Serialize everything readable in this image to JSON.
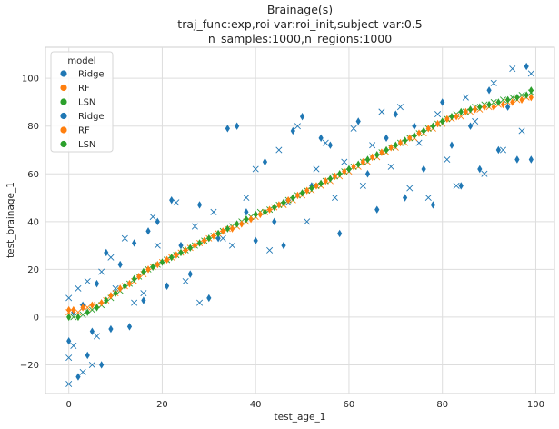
{
  "chart_data": {
    "type": "scatter",
    "title_lines": [
      "Brainage(s)",
      "traj_func:exp,roi-var:roi_init,subject-var:0.5",
      "n_samples:1000,n_regions:1000"
    ],
    "xlabel": "test_age_1",
    "ylabel": "test_brainage_1",
    "xlim": [
      -5,
      104
    ],
    "ylim": [
      -32,
      113
    ],
    "xticks": [
      0,
      20,
      40,
      60,
      80,
      100
    ],
    "yticks": [
      -20,
      0,
      20,
      40,
      60,
      80,
      100
    ],
    "grid": true,
    "legend": {
      "title": "model",
      "placement": "top-left",
      "entries": [
        {
          "label": "Ridge",
          "color": "#1f77b4"
        },
        {
          "label": "RF",
          "color": "#ff7f0e"
        },
        {
          "label": "LSN",
          "color": "#2ca02c"
        },
        {
          "label": "Ridge",
          "color": "#1f77b4"
        },
        {
          "label": "RF",
          "color": "#ff7f0e"
        },
        {
          "label": "LSN",
          "color": "#2ca02c"
        }
      ]
    },
    "series": [
      {
        "name": "Ridge",
        "marker": "x",
        "color": "#1f77b4",
        "x": [
          0,
          0,
          0,
          1,
          2,
          3,
          3,
          4,
          5,
          6,
          7,
          9,
          10,
          12,
          14,
          16,
          18,
          19,
          21,
          23,
          25,
          27,
          28,
          31,
          33,
          35,
          38,
          40,
          43,
          45,
          47,
          49,
          51,
          53,
          55,
          57,
          59,
          61,
          63,
          65,
          67,
          69,
          71,
          73,
          75,
          77,
          79,
          81,
          83,
          85,
          87,
          89,
          91,
          93,
          95,
          97,
          99
        ],
        "y": [
          -28,
          -17,
          8,
          -12,
          12,
          -23,
          4,
          15,
          -20,
          -8,
          19,
          25,
          12,
          33,
          6,
          10,
          42,
          30,
          24,
          48,
          15,
          38,
          6,
          44,
          33,
          30,
          50,
          62,
          28,
          70,
          48,
          80,
          40,
          62,
          73,
          50,
          65,
          79,
          55,
          72,
          86,
          63,
          88,
          54,
          73,
          50,
          85,
          66,
          55,
          92,
          82,
          60,
          98,
          70,
          104,
          78,
          102
        ]
      },
      {
        "name": "RF",
        "marker": "x",
        "color": "#ff7f0e",
        "x": [
          0,
          2,
          4,
          6,
          8,
          10,
          12,
          14,
          16,
          18,
          20,
          22,
          24,
          26,
          28,
          30,
          32,
          34,
          36,
          38,
          40,
          42,
          44,
          46,
          48,
          50,
          52,
          54,
          56,
          58,
          60,
          62,
          64,
          66,
          68,
          70,
          72,
          74,
          76,
          78,
          80,
          82,
          84,
          86,
          88,
          90,
          92,
          94,
          96,
          98
        ],
        "y": [
          2,
          2,
          4,
          5,
          7,
          10,
          13,
          15,
          18,
          21,
          23,
          25,
          27,
          29,
          31,
          33,
          35,
          37,
          38,
          40,
          42,
          44,
          46,
          47,
          49,
          51,
          53,
          55,
          57,
          59,
          61,
          63,
          65,
          67,
          69,
          71,
          73,
          75,
          77,
          79,
          81,
          83,
          84,
          86,
          87,
          88,
          89,
          90,
          91,
          92
        ]
      },
      {
        "name": "LSN",
        "marker": "x",
        "color": "#2ca02c",
        "x": [
          1,
          3,
          5,
          7,
          9,
          11,
          13,
          15,
          17,
          19,
          21,
          23,
          25,
          27,
          29,
          31,
          33,
          35,
          37,
          39,
          41,
          43,
          45,
          47,
          49,
          51,
          53,
          55,
          57,
          59,
          61,
          63,
          65,
          67,
          69,
          71,
          73,
          75,
          77,
          79,
          81,
          83,
          85,
          87,
          89,
          91,
          93,
          95,
          97,
          99
        ],
        "y": [
          0,
          1,
          3,
          5,
          8,
          11,
          14,
          17,
          20,
          22,
          24,
          26,
          28,
          30,
          32,
          34,
          36,
          38,
          40,
          42,
          44,
          45,
          47,
          49,
          51,
          53,
          55,
          57,
          59,
          61,
          63,
          65,
          67,
          69,
          71,
          73,
          75,
          77,
          79,
          81,
          83,
          85,
          86,
          88,
          89,
          90,
          91,
          92,
          93,
          94
        ]
      },
      {
        "name": "Ridge",
        "marker": "diamond",
        "color": "#1f77b4",
        "x": [
          0,
          1,
          2,
          3,
          4,
          5,
          6,
          7,
          8,
          9,
          11,
          13,
          14,
          16,
          17,
          19,
          21,
          22,
          24,
          26,
          28,
          30,
          32,
          34,
          36,
          38,
          40,
          42,
          44,
          46,
          48,
          50,
          52,
          54,
          56,
          58,
          60,
          62,
          64,
          66,
          68,
          70,
          72,
          74,
          76,
          78,
          80,
          82,
          84,
          86,
          88,
          90,
          92,
          94,
          96,
          98,
          99
        ],
        "y": [
          -10,
          2,
          -25,
          5,
          -16,
          -6,
          14,
          -20,
          27,
          -5,
          22,
          -4,
          31,
          7,
          36,
          40,
          13,
          49,
          30,
          18,
          47,
          8,
          33,
          79,
          80,
          44,
          32,
          65,
          40,
          30,
          78,
          84,
          55,
          75,
          72,
          35,
          62,
          82,
          60,
          45,
          75,
          85,
          50,
          80,
          62,
          47,
          90,
          72,
          55,
          80,
          62,
          95,
          70,
          88,
          66,
          105,
          66
        ]
      },
      {
        "name": "RF",
        "marker": "diamond",
        "color": "#ff7f0e",
        "x": [
          0,
          1,
          3,
          5,
          7,
          9,
          11,
          13,
          15,
          17,
          19,
          21,
          23,
          25,
          27,
          29,
          31,
          33,
          35,
          37,
          39,
          41,
          43,
          45,
          47,
          49,
          51,
          53,
          55,
          57,
          59,
          61,
          63,
          65,
          67,
          69,
          71,
          73,
          75,
          77,
          79,
          81,
          83,
          85,
          87,
          89,
          91,
          93,
          95,
          97,
          99
        ],
        "y": [
          3,
          3,
          4,
          5,
          6,
          9,
          12,
          14,
          17,
          20,
          22,
          24,
          26,
          28,
          30,
          32,
          34,
          36,
          37,
          39,
          41,
          43,
          45,
          47,
          49,
          51,
          53,
          55,
          57,
          59,
          61,
          63,
          65,
          67,
          69,
          71,
          73,
          75,
          77,
          79,
          81,
          83,
          84,
          86,
          87,
          88,
          88,
          89,
          90,
          91,
          92
        ]
      },
      {
        "name": "LSN",
        "marker": "diamond",
        "color": "#2ca02c",
        "x": [
          0,
          2,
          4,
          6,
          8,
          10,
          12,
          14,
          16,
          18,
          20,
          22,
          24,
          26,
          28,
          30,
          32,
          34,
          36,
          38,
          40,
          42,
          44,
          46,
          48,
          50,
          52,
          54,
          56,
          58,
          60,
          62,
          64,
          66,
          68,
          70,
          72,
          74,
          76,
          78,
          80,
          82,
          84,
          86,
          88,
          90,
          92,
          94,
          96,
          98,
          99
        ],
        "y": [
          0,
          0,
          2,
          4,
          7,
          10,
          13,
          16,
          19,
          21,
          23,
          25,
          27,
          29,
          31,
          33,
          35,
          37,
          39,
          41,
          43,
          44,
          46,
          48,
          50,
          52,
          54,
          56,
          58,
          60,
          62,
          64,
          66,
          68,
          70,
          72,
          74,
          76,
          78,
          80,
          82,
          84,
          86,
          87,
          88,
          89,
          90,
          91,
          92,
          93,
          95
        ]
      }
    ]
  }
}
